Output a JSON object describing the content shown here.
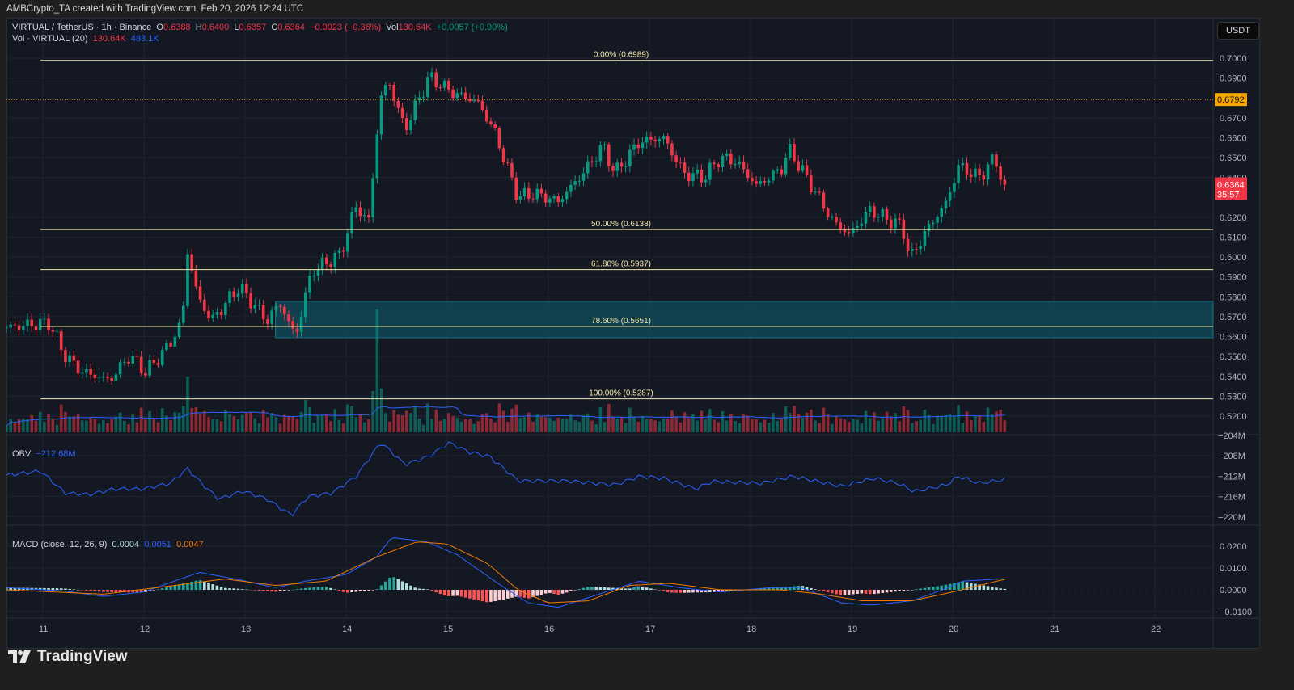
{
  "credit": "AMBCrypto_TA created with TradingView.com, Feb 20, 2026 12:24 UTC",
  "legend": {
    "symbol": "VIRTUAL / TetherUS · 1h · Binance",
    "o_label": "O",
    "o": "0.6388",
    "h_label": "H",
    "h": "0.6400",
    "l_label": "L",
    "l": "0.6357",
    "c_label": "C",
    "c": "0.6364",
    "change": "−0.0023 (−0.36%)",
    "vol_label": "Vol",
    "vol": "130.64K",
    "vol_change": "+0.0057 (+0.90%)",
    "vol_ind": "Vol · VIRTUAL (20)",
    "vol_ind_v1": "130.64K",
    "vol_ind_v2": "488.1K",
    "obv_label": "OBV",
    "obv_value": "−212.68M",
    "macd_label": "MACD (close, 12, 26, 9)",
    "macd_hist": "0.0004",
    "macd_line": "0.0051",
    "macd_signal": "0.0047"
  },
  "currency_button": "USDT",
  "logo_text": "TradingView",
  "colors": {
    "up": "#089981",
    "down": "#f23645",
    "fib": "#f2e6a6",
    "zone": "#0f4c5c",
    "obv": "#2962ff",
    "macd": "#2962ff",
    "signal": "#f57c00",
    "last_price": "#f7a600"
  },
  "chart_data": {
    "type": "candlestick",
    "price_axis": {
      "ticks": [
        "0.7000",
        "0.6900",
        "0.6700",
        "0.6600",
        "0.6500",
        "0.6400",
        "0.6200",
        "0.6100",
        "0.6000",
        "0.5900",
        "0.5800",
        "0.5700",
        "0.5600",
        "0.5500",
        "0.5400",
        "0.5300",
        "0.5200"
      ],
      "range": [
        0.5145,
        0.7115
      ]
    },
    "time_axis": {
      "ticks": [
        "11",
        "12",
        "13",
        "14",
        "15",
        "16",
        "17",
        "18",
        "19",
        "20",
        "21",
        "22"
      ]
    },
    "marked_price": {
      "value": "0.6792"
    },
    "last_price": {
      "value": "0.6364",
      "countdown": "35:57"
    },
    "fib_levels": [
      {
        "label": "0.00% (0.6989)",
        "price": 0.6989
      },
      {
        "label": "50.00% (0.6138)",
        "price": 0.6138
      },
      {
        "label": "61.80% (0.5937)",
        "price": 0.5937
      },
      {
        "label": "78.60% (0.5651)",
        "price": 0.5651
      },
      {
        "label": "100.00% (0.5287)",
        "price": 0.5287
      }
    ],
    "zone": {
      "top": 0.5777,
      "bottom": 0.5594,
      "start_day": 13.3
    },
    "close_keypoints": [
      [
        10.64,
        0.5647
      ],
      [
        11.06,
        0.567
      ],
      [
        11.22,
        0.5505
      ],
      [
        11.38,
        0.5424
      ],
      [
        11.66,
        0.538
      ],
      [
        11.86,
        0.5505
      ],
      [
        12.02,
        0.542
      ],
      [
        12.26,
        0.5566
      ],
      [
        12.38,
        0.568
      ],
      [
        12.43,
        0.603
      ],
      [
        12.54,
        0.579
      ],
      [
        12.67,
        0.568
      ],
      [
        12.94,
        0.585
      ],
      [
        13.22,
        0.568
      ],
      [
        13.34,
        0.577
      ],
      [
        13.5,
        0.56
      ],
      [
        13.66,
        0.593
      ],
      [
        13.94,
        0.601
      ],
      [
        14.1,
        0.626
      ],
      [
        14.22,
        0.617
      ],
      [
        14.34,
        0.68
      ],
      [
        14.42,
        0.6886
      ],
      [
        14.58,
        0.664
      ],
      [
        14.82,
        0.6906
      ],
      [
        15.06,
        0.6825
      ],
      [
        15.3,
        0.678
      ],
      [
        15.46,
        0.664
      ],
      [
        15.7,
        0.63
      ],
      [
        15.86,
        0.632
      ],
      [
        16.1,
        0.628
      ],
      [
        16.34,
        0.642
      ],
      [
        16.54,
        0.656
      ],
      [
        16.66,
        0.642
      ],
      [
        16.9,
        0.658
      ],
      [
        17.14,
        0.66
      ],
      [
        17.34,
        0.642
      ],
      [
        17.54,
        0.64
      ],
      [
        17.7,
        0.65
      ],
      [
        17.86,
        0.648
      ],
      [
        18.06,
        0.6358
      ],
      [
        18.3,
        0.644
      ],
      [
        18.38,
        0.654
      ],
      [
        18.58,
        0.6378
      ],
      [
        18.82,
        0.6175
      ],
      [
        18.98,
        0.6114
      ],
      [
        19.18,
        0.6236
      ],
      [
        19.34,
        0.6195
      ],
      [
        19.5,
        0.6155
      ],
      [
        19.58,
        0.5992
      ],
      [
        19.74,
        0.6134
      ],
      [
        19.94,
        0.6277
      ],
      [
        20.06,
        0.646
      ],
      [
        20.26,
        0.64
      ],
      [
        20.42,
        0.65
      ],
      [
        20.5,
        0.6364
      ]
    ],
    "obv": {
      "ticks": [
        "−204M",
        "−208M",
        "−212M",
        "−216M",
        "−220M"
      ],
      "keypoints": [
        [
          10.64,
          -211.8
        ],
        [
          10.98,
          -211
        ],
        [
          11.22,
          -215.3
        ],
        [
          11.46,
          -215.6
        ],
        [
          11.7,
          -214.5
        ],
        [
          11.98,
          -214.5
        ],
        [
          12.26,
          -213.4
        ],
        [
          12.43,
          -210.5
        ],
        [
          12.58,
          -213.6
        ],
        [
          12.74,
          -216.5
        ],
        [
          12.98,
          -214.9
        ],
        [
          13.22,
          -216.5
        ],
        [
          13.46,
          -219.7
        ],
        [
          13.62,
          -216
        ],
        [
          13.86,
          -215.3
        ],
        [
          14.1,
          -212
        ],
        [
          14.34,
          -205.4
        ],
        [
          14.42,
          -206.7
        ],
        [
          14.58,
          -209.7
        ],
        [
          14.82,
          -208.1
        ],
        [
          15.02,
          -205.4
        ],
        [
          15.22,
          -207.3
        ],
        [
          15.42,
          -208.1
        ],
        [
          15.7,
          -212.9
        ],
        [
          16.18,
          -212.9
        ],
        [
          16.66,
          -213.7
        ],
        [
          16.9,
          -212
        ],
        [
          17.14,
          -212.4
        ],
        [
          17.46,
          -214.5
        ],
        [
          17.62,
          -213
        ],
        [
          18.1,
          -213.4
        ],
        [
          18.42,
          -212
        ],
        [
          18.66,
          -213
        ],
        [
          18.9,
          -214
        ],
        [
          19.22,
          -212.4
        ],
        [
          19.46,
          -213.4
        ],
        [
          19.62,
          -215
        ],
        [
          19.94,
          -213.7
        ],
        [
          20.06,
          -212
        ],
        [
          20.26,
          -213.4
        ],
        [
          20.5,
          -212.68
        ]
      ]
    },
    "macd": {
      "ticks": [
        "0.0200",
        "0.0100",
        "0.0000",
        "−0.0100"
      ],
      "macd_keypoints": [
        [
          10.64,
          0.001
        ],
        [
          11.2,
          -0.0005
        ],
        [
          11.6,
          -0.003
        ],
        [
          12.0,
          -0.001
        ],
        [
          12.3,
          0.004
        ],
        [
          12.55,
          0.008
        ],
        [
          12.9,
          0.005
        ],
        [
          13.3,
          0.001
        ],
        [
          13.6,
          0.004
        ],
        [
          14.0,
          0.007
        ],
        [
          14.3,
          0.015
        ],
        [
          14.45,
          0.024
        ],
        [
          14.8,
          0.022
        ],
        [
          15.1,
          0.016
        ],
        [
          15.5,
          0.003
        ],
        [
          15.8,
          -0.006
        ],
        [
          16.1,
          -0.008
        ],
        [
          16.5,
          -0.002
        ],
        [
          16.9,
          0.004
        ],
        [
          17.3,
          0.001
        ],
        [
          17.7,
          -0.001
        ],
        [
          18.2,
          0.001
        ],
        [
          18.5,
          0.001
        ],
        [
          18.9,
          -0.006
        ],
        [
          19.2,
          -0.007
        ],
        [
          19.6,
          -0.005
        ],
        [
          19.9,
          0.0
        ],
        [
          20.1,
          0.004
        ],
        [
          20.5,
          0.0051
        ]
      ],
      "signal_keypoints": [
        [
          10.64,
          0.0
        ],
        [
          11.6,
          -0.002
        ],
        [
          12.3,
          0.002
        ],
        [
          12.8,
          0.005
        ],
        [
          13.3,
          0.002
        ],
        [
          13.8,
          0.004
        ],
        [
          14.3,
          0.015
        ],
        [
          14.7,
          0.022
        ],
        [
          15.0,
          0.021
        ],
        [
          15.4,
          0.012
        ],
        [
          15.7,
          0.0
        ],
        [
          16.0,
          -0.006
        ],
        [
          16.4,
          -0.005
        ],
        [
          16.8,
          0.002
        ],
        [
          17.2,
          0.003
        ],
        [
          17.7,
          0.0
        ],
        [
          18.3,
          0.0
        ],
        [
          18.7,
          -0.002
        ],
        [
          19.1,
          -0.005
        ],
        [
          19.6,
          -0.005
        ],
        [
          20.0,
          -0.001
        ],
        [
          20.5,
          0.0047
        ]
      ]
    }
  }
}
